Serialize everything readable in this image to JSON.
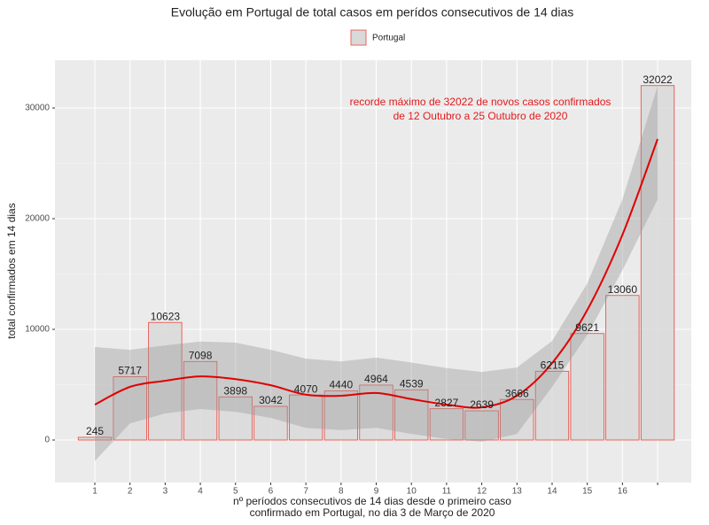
{
  "chart_data": {
    "type": "bar",
    "title": "Evolução em Portugal de total casos em perídos consecutivos de 14 dias",
    "x_label": [
      "nº períodos consecutivos de 14 dias desde o primeiro caso",
      "confirmado em Portugal, no dia 3 de Março de 2020"
    ],
    "y_label": "total confirmados em 14 dias",
    "annotation": [
      "recorde máximo de 32022 de novos casos confirmados",
      "de 12 Outubro a 25 Outubro de 2020"
    ],
    "annotation_color": "#e31a1c",
    "categories": [
      "1",
      "2",
      "3",
      "4",
      "5",
      "6",
      "7",
      "8",
      "9",
      "10",
      "11",
      "12",
      "13",
      "14",
      "15",
      "16",
      null
    ],
    "series": [
      {
        "name": "Portugal",
        "color": "#e8453c",
        "fill": "#d9d9d9",
        "values": [
          245,
          5717,
          10623,
          7098,
          3898,
          3042,
          4070,
          4440,
          4964,
          4539,
          2827,
          2639,
          3666,
          6215,
          9621,
          13060,
          32022
        ]
      }
    ],
    "smooth": {
      "color": "#e00000",
      "band_color": "#999999",
      "values": [
        3200,
        4800,
        5350,
        5750,
        5500,
        4950,
        4100,
        4000,
        4250,
        3700,
        3200,
        2950,
        4000,
        6950,
        11750,
        18550,
        27200
      ],
      "upper": [
        8400,
        8150,
        8550,
        8900,
        8800,
        8150,
        7350,
        7100,
        7450,
        7000,
        6500,
        6150,
        6550,
        8950,
        14150,
        21750,
        32000
      ],
      "lower": [
        -1900,
        1500,
        2400,
        2800,
        2550,
        2000,
        1100,
        900,
        1100,
        550,
        100,
        -150,
        550,
        4800,
        9500,
        15350,
        21750
      ]
    },
    "ylim": [
      -3840,
      34320
    ],
    "yticks": [
      0,
      10000,
      20000,
      30000
    ],
    "grid": true,
    "legend": "top"
  }
}
